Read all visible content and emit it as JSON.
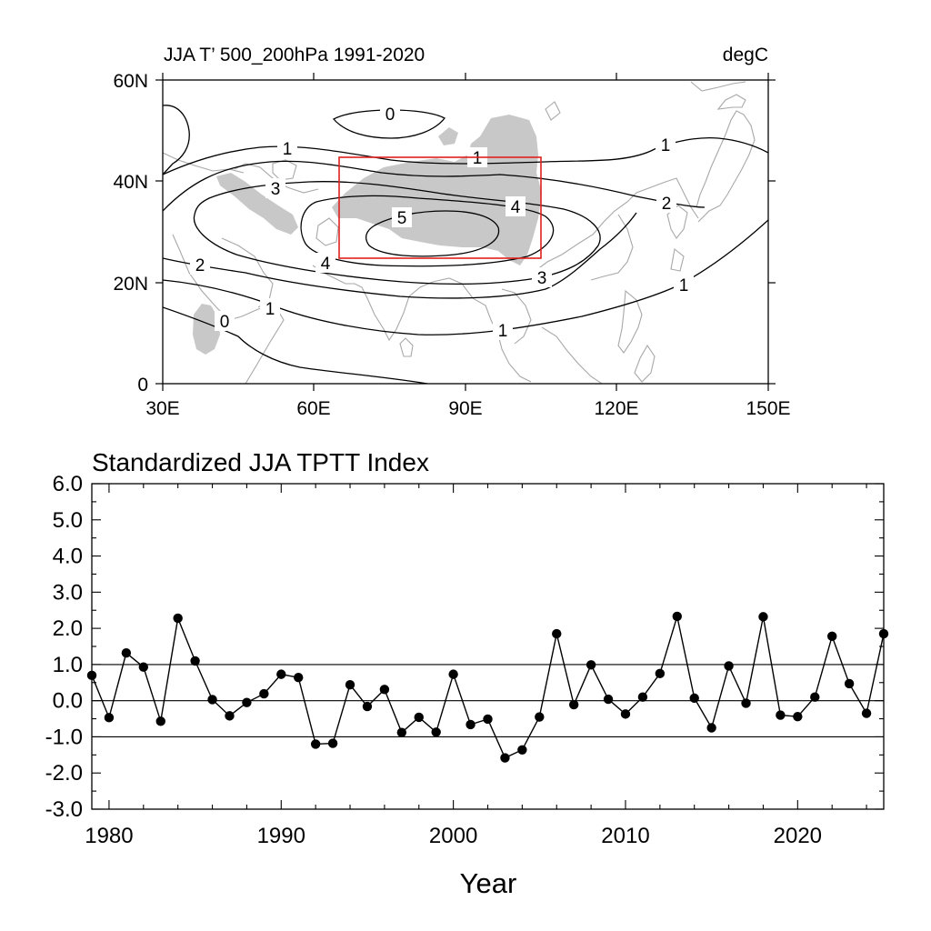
{
  "map": {
    "title_left": "JJA T’ 500_200hPa 1991-2020",
    "title_right": "degC",
    "lon_ticks": [
      "30E",
      "60E",
      "90E",
      "120E",
      "150E"
    ],
    "lat_ticks": [
      "60N",
      "40N",
      "20N",
      "0"
    ],
    "contour_levels": [
      "0",
      "1",
      "2",
      "3",
      "4",
      "5"
    ],
    "contour_labels": [
      "0",
      "1",
      "1",
      "1",
      "3",
      "5",
      "4",
      "2",
      "2",
      "4",
      "3",
      "1",
      "0",
      "1",
      "1"
    ],
    "box": {
      "lon_range": [
        65,
        105
      ],
      "lat_range": [
        25,
        45
      ],
      "color": "#e0201c"
    },
    "terrain_color": "#c8c8c8",
    "coast_color": "#a8a8a8"
  },
  "chart_data": {
    "type": "line",
    "title": "Standardized JJA TPTT Index",
    "xlabel": "Year",
    "ylabel": "",
    "xlim": [
      1979,
      2025
    ],
    "ylim": [
      -3.0,
      6.0
    ],
    "x_ticks": [
      "1980",
      "1990",
      "2000",
      "2010",
      "2020"
    ],
    "y_ticks": [
      "6.0",
      "5.0",
      "4.0",
      "3.0",
      "2.0",
      "1.0",
      "0.0",
      "-1.0",
      "-2.0",
      "-3.0"
    ],
    "reference_lines": [
      1.0,
      0.0,
      -1.0
    ],
    "x": [
      1979,
      1980,
      1981,
      1982,
      1983,
      1984,
      1985,
      1986,
      1987,
      1988,
      1989,
      1990,
      1991,
      1992,
      1993,
      1994,
      1995,
      1996,
      1997,
      1998,
      1999,
      2000,
      2001,
      2002,
      2003,
      2004,
      2005,
      2006,
      2007,
      2008,
      2009,
      2010,
      2011,
      2012,
      2013,
      2014,
      2015,
      2016,
      2017,
      2018,
      2019,
      2020,
      2021,
      2022,
      2023,
      2024,
      2025
    ],
    "values": [
      0.7,
      -0.47,
      1.32,
      0.93,
      -0.57,
      2.28,
      1.1,
      0.03,
      -0.42,
      -0.05,
      0.19,
      0.73,
      0.64,
      -1.2,
      -1.18,
      0.44,
      -0.16,
      0.31,
      -0.88,
      -0.46,
      -0.87,
      0.73,
      -0.66,
      -0.51,
      -1.58,
      -1.36,
      -0.45,
      1.85,
      -0.11,
      0.99,
      0.04,
      -0.37,
      0.1,
      0.75,
      2.33,
      0.07,
      -0.75,
      0.96,
      -0.07,
      2.32,
      -0.4,
      -0.44,
      0.1,
      1.78,
      0.47,
      -0.35,
      1.85
    ]
  }
}
